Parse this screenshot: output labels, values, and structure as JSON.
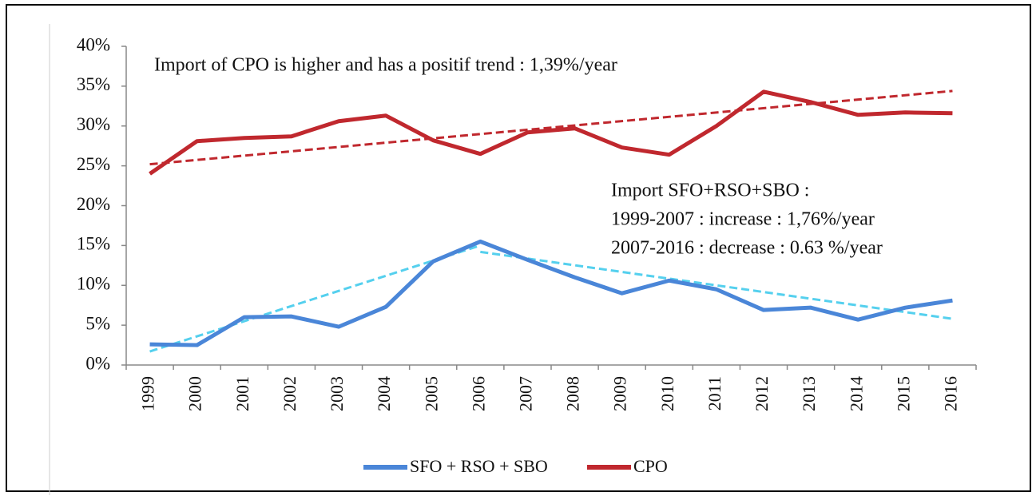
{
  "chart_data": {
    "type": "line",
    "annotations": [
      "Import of CPO is higher and has a positif trend : 1,39%/year",
      "Import SFO+RSO+SBO :",
      "1999-2007 : increase : 1,76%/year",
      "2007-2016 : decrease : 0.63 %/year"
    ],
    "categories": [
      "1999",
      "2000",
      "2001",
      "2002",
      "2003",
      "2004",
      "2005",
      "2006",
      "2007",
      "2008",
      "2009",
      "2010",
      "2011",
      "2012",
      "2013",
      "2014",
      "2015",
      "2016"
    ],
    "series": [
      {
        "name": "SFO + RSO + SBO",
        "color": "#4a86d8",
        "values": [
          2.6,
          2.5,
          6,
          6.1,
          4.8,
          7.3,
          13,
          15.5,
          13.2,
          11,
          9,
          10.6,
          9.5,
          6.9,
          7.2,
          5.7,
          7.2,
          8.1
        ]
      },
      {
        "name": "CPO",
        "color": "#c0282e",
        "values": [
          24,
          28.1,
          28.5,
          28.7,
          30.6,
          31.3,
          28.2,
          26.5,
          29.2,
          29.7,
          27.3,
          26.4,
          30,
          34.3,
          33,
          31.4,
          31.7,
          31.6
        ]
      }
    ],
    "trendlines": [
      {
        "color": "#c0282e",
        "x": [
          "1999",
          "2016"
        ],
        "values": [
          25.2,
          34.4
        ]
      },
      {
        "color": "#55d0ee",
        "x": [
          "1999",
          "2006"
        ],
        "values": [
          1.7,
          15
        ]
      },
      {
        "color": "#55d0ee",
        "x": [
          "2006",
          "2016"
        ],
        "values": [
          14.2,
          5.8
        ]
      }
    ],
    "ylim": [
      0,
      40
    ],
    "yticks": [
      {
        "value": 0,
        "label": "0%"
      },
      {
        "value": 5,
        "label": "5%"
      },
      {
        "value": 10,
        "label": "10%"
      },
      {
        "value": 15,
        "label": "15%"
      },
      {
        "value": 20,
        "label": "20%"
      },
      {
        "value": 25,
        "label": "25%"
      },
      {
        "value": 30,
        "label": "30%"
      },
      {
        "value": 35,
        "label": "35%"
      },
      {
        "value": 40,
        "label": "40%"
      }
    ],
    "legend": "bottom"
  }
}
